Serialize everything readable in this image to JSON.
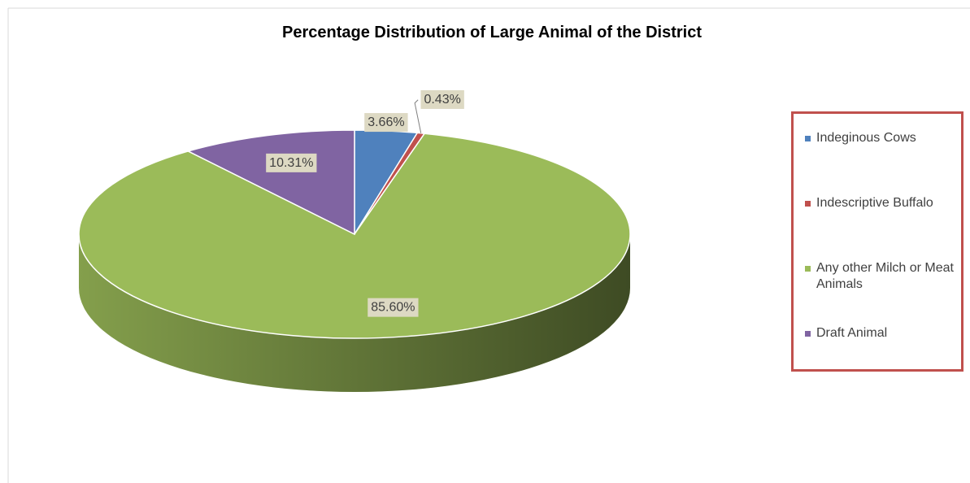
{
  "chart_data": {
    "type": "pie",
    "title": "Percentage Distribution of Large Animal of the District",
    "categories": [
      "Indeginous Cows",
      "Indescriptive Buffalo",
      "Any other Milch or Meat Animals",
      "Draft Animal"
    ],
    "values": [
      3.66,
      0.43,
      85.6,
      10.31
    ],
    "value_labels": [
      "3.66%",
      "0.43%",
      "85.60%",
      "10.31%"
    ],
    "colors": [
      "#4f81bd",
      "#c0504d",
      "#9bbb59",
      "#8064a2"
    ]
  }
}
